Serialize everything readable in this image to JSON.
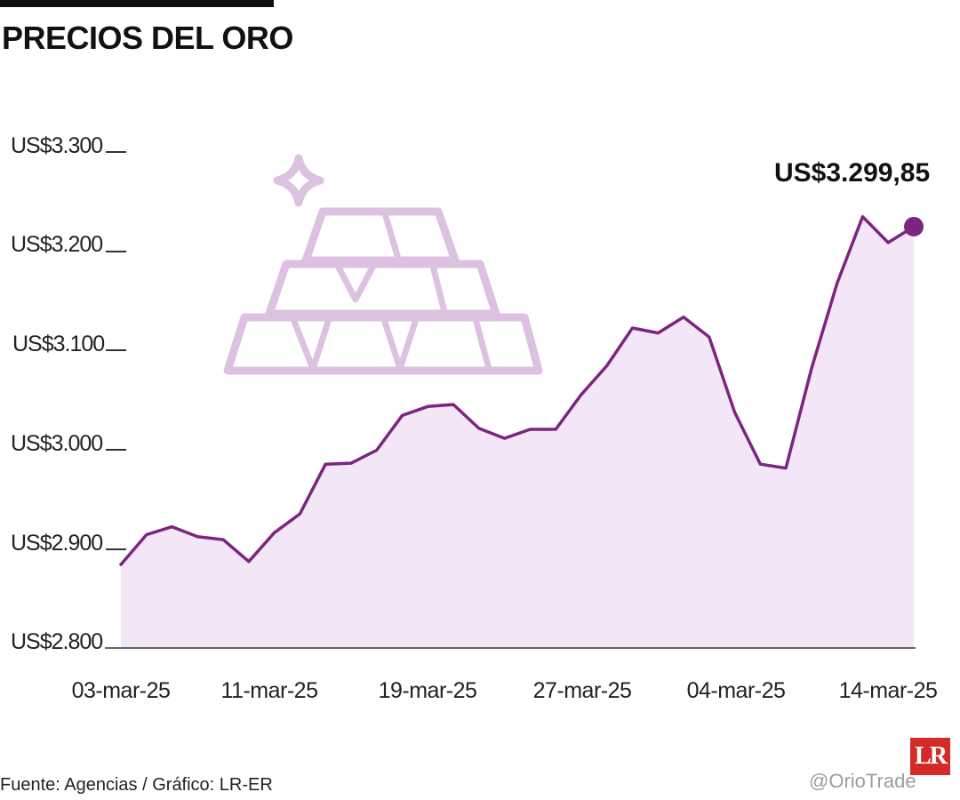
{
  "chart_data": {
    "type": "area",
    "title": "PRECIOS DEL ORO",
    "ylim": [
      2800,
      3300
    ],
    "y_ticks": [
      "US$3.300",
      "US$3.200",
      "US$3.100",
      "US$3.000",
      "US$2.900",
      "US$2.800"
    ],
    "x_ticks": [
      "03-mar-25",
      "11-mar-25",
      "19-mar-25",
      "27-mar-25",
      "04-mar-25",
      "14-mar-25"
    ],
    "annotation": "US$3.299,85",
    "values": [
      2884,
      2914,
      2922,
      2912,
      2909,
      2887,
      2916,
      2935,
      2985,
      2986,
      2999,
      3034,
      3043,
      3045,
      3021,
      3011,
      3020,
      3020,
      3055,
      3084,
      3122,
      3117,
      3133,
      3113,
      3037,
      2985,
      2981,
      3081,
      3167,
      3234,
      3208,
      3224
    ],
    "line_color": "#7b2580",
    "fill_color": "#f3e6f6",
    "icon_color": "#dcc1e0",
    "grid": false,
    "legend": "none"
  },
  "source": "Fuente: Agencias / Gráfico: LR-ER",
  "logo": "LR",
  "watermark": "@OrioTrade"
}
